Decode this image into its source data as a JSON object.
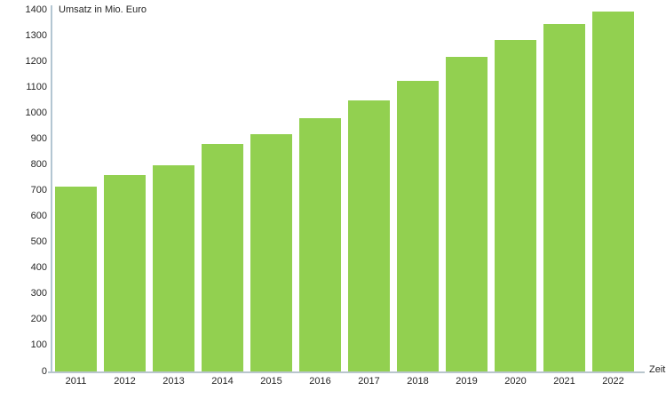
{
  "chart_data": {
    "type": "bar",
    "title": "Umsatz in Mio. Euro",
    "xlabel": "Zeit",
    "ylabel": "Umsatz in Mio. Euro",
    "series_name": "Umsatz in Mio. Euro",
    "categories": [
      "2011",
      "2012",
      "2013",
      "2014",
      "2015",
      "2016",
      "2017",
      "2018",
      "2019",
      "2020",
      "2021",
      "2022"
    ],
    "values": [
      715,
      760,
      800,
      880,
      920,
      980,
      1050,
      1125,
      1220,
      1285,
      1345,
      1395
    ],
    "ylim": [
      0,
      1400
    ],
    "ytick_step": 100,
    "yticks": [
      0,
      100,
      200,
      300,
      400,
      500,
      600,
      700,
      800,
      900,
      1000,
      1100,
      1200,
      1300,
      1400
    ],
    "grid": false,
    "legend_position": "none",
    "colors": {
      "bar": "#92D050",
      "y_axis_line": "#B3C6D2",
      "x_axis_line": "#B9C6CD",
      "text": "#262626",
      "background": "#FFFFFF"
    }
  }
}
